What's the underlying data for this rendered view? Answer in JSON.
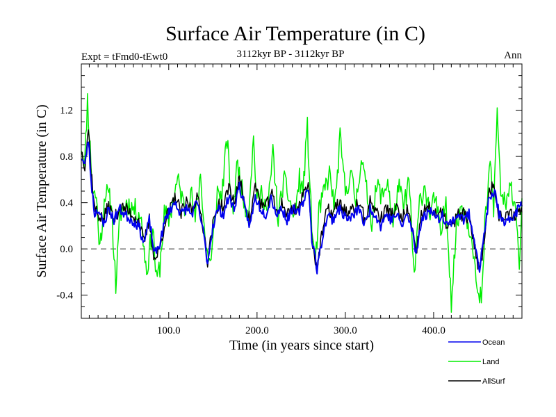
{
  "chart_data": {
    "type": "line",
    "title": "Surface Air Temperature (in C)",
    "subtitle_left": "Expt = tFmd0-tEwt0",
    "subtitle_center": "3112kyr BP - 3112kyr BP",
    "subtitle_right": "Ann",
    "xlabel": "Time (in years since start)",
    "ylabel": "Surface Air Temperature (in C)",
    "xlim": [
      1,
      500
    ],
    "ylim": [
      -0.6,
      1.6
    ],
    "xticks": [
      100,
      200,
      300,
      400
    ],
    "xtick_labels": [
      "100.0",
      "200.0",
      "300.0",
      "400.0"
    ],
    "yticks": [
      -0.4,
      0.0,
      0.4,
      0.8,
      1.2
    ],
    "ytick_labels": [
      "-0.4",
      "0.0",
      "0.4",
      "0.8",
      "1.2"
    ],
    "reference_line": 0.0,
    "series": [
      {
        "name": "Land",
        "color": "#00ee00",
        "anchors": [
          [
            1,
            0.9
          ],
          [
            5,
            0.75
          ],
          [
            8,
            1.3
          ],
          [
            10,
            1.0
          ],
          [
            14,
            0.5
          ],
          [
            18,
            0.45
          ],
          [
            22,
            0.0
          ],
          [
            28,
            0.5
          ],
          [
            35,
            0.4
          ],
          [
            40,
            -0.32
          ],
          [
            45,
            0.3
          ],
          [
            52,
            0.4
          ],
          [
            60,
            0.35
          ],
          [
            68,
            0.3
          ],
          [
            75,
            -0.2
          ],
          [
            82,
            0.2
          ],
          [
            86,
            -0.28
          ],
          [
            90,
            -0.15
          ],
          [
            95,
            0.3
          ],
          [
            100,
            0.25
          ],
          [
            106,
            0.45
          ],
          [
            110,
            0.6
          ],
          [
            118,
            0.35
          ],
          [
            125,
            0.5
          ],
          [
            130,
            0.25
          ],
          [
            136,
            0.65
          ],
          [
            142,
            0.0
          ],
          [
            148,
            -0.12
          ],
          [
            155,
            0.5
          ],
          [
            160,
            0.45
          ],
          [
            166,
            0.95
          ],
          [
            172,
            0.3
          ],
          [
            178,
            0.75
          ],
          [
            184,
            0.45
          ],
          [
            190,
            0.3
          ],
          [
            196,
            0.95
          ],
          [
            200,
            0.4
          ],
          [
            206,
            0.5
          ],
          [
            212,
            0.3
          ],
          [
            218,
            0.85
          ],
          [
            224,
            0.25
          ],
          [
            230,
            0.6
          ],
          [
            236,
            0.45
          ],
          [
            242,
            0.25
          ],
          [
            248,
            0.6
          ],
          [
            252,
            0.5
          ],
          [
            257,
            1.05
          ],
          [
            262,
            0.2
          ],
          [
            266,
            -0.12
          ],
          [
            270,
            0.3
          ],
          [
            276,
            0.5
          ],
          [
            282,
            0.65
          ],
          [
            288,
            0.35
          ],
          [
            294,
            0.95
          ],
          [
            300,
            0.5
          ],
          [
            306,
            0.65
          ],
          [
            312,
            0.4
          ],
          [
            318,
            0.8
          ],
          [
            324,
            0.5
          ],
          [
            330,
            0.25
          ],
          [
            336,
            0.55
          ],
          [
            342,
            0.45
          ],
          [
            348,
            0.6
          ],
          [
            354,
            0.2
          ],
          [
            360,
            0.55
          ],
          [
            366,
            0.35
          ],
          [
            372,
            0.6
          ],
          [
            378,
            -0.25
          ],
          [
            384,
            0.4
          ],
          [
            390,
            0.55
          ],
          [
            396,
            0.3
          ],
          [
            402,
            0.45
          ],
          [
            408,
            0.1
          ],
          [
            414,
            0.45
          ],
          [
            420,
            -0.45
          ],
          [
            426,
            0.2
          ],
          [
            432,
            0.4
          ],
          [
            438,
            0.25
          ],
          [
            444,
            0.1
          ],
          [
            450,
            -0.45
          ],
          [
            455,
            -0.4
          ],
          [
            458,
            0.2
          ],
          [
            464,
            0.75
          ],
          [
            468,
            0.35
          ],
          [
            472,
            1.2
          ],
          [
            476,
            0.5
          ],
          [
            482,
            0.35
          ],
          [
            488,
            0.55
          ],
          [
            494,
            0.3
          ],
          [
            497,
            -0.12
          ],
          [
            500,
            0.35
          ]
        ]
      },
      {
        "name": "Ocean",
        "color": "#0000ee",
        "anchors": [
          [
            1,
            0.8
          ],
          [
            5,
            0.72
          ],
          [
            9,
            0.95
          ],
          [
            12,
            0.6
          ],
          [
            16,
            0.3
          ],
          [
            20,
            0.35
          ],
          [
            26,
            0.2
          ],
          [
            32,
            0.35
          ],
          [
            38,
            0.25
          ],
          [
            44,
            0.35
          ],
          [
            50,
            0.3
          ],
          [
            58,
            0.25
          ],
          [
            66,
            0.2
          ],
          [
            72,
            0.05
          ],
          [
            78,
            0.25
          ],
          [
            84,
            -0.05
          ],
          [
            90,
            0.05
          ],
          [
            96,
            0.25
          ],
          [
            102,
            0.35
          ],
          [
            108,
            0.4
          ],
          [
            114,
            0.3
          ],
          [
            120,
            0.35
          ],
          [
            126,
            0.3
          ],
          [
            132,
            0.4
          ],
          [
            138,
            0.2
          ],
          [
            144,
            -0.12
          ],
          [
            150,
            0.2
          ],
          [
            156,
            0.35
          ],
          [
            162,
            0.3
          ],
          [
            168,
            0.45
          ],
          [
            174,
            0.35
          ],
          [
            180,
            0.55
          ],
          [
            186,
            0.35
          ],
          [
            192,
            0.2
          ],
          [
            198,
            0.45
          ],
          [
            204,
            0.35
          ],
          [
            210,
            0.3
          ],
          [
            216,
            0.45
          ],
          [
            222,
            0.3
          ],
          [
            228,
            0.35
          ],
          [
            234,
            0.25
          ],
          [
            240,
            0.35
          ],
          [
            246,
            0.3
          ],
          [
            252,
            0.4
          ],
          [
            258,
            0.55
          ],
          [
            262,
            0.1
          ],
          [
            268,
            -0.18
          ],
          [
            274,
            0.1
          ],
          [
            280,
            0.3
          ],
          [
            286,
            0.25
          ],
          [
            292,
            0.35
          ],
          [
            298,
            0.3
          ],
          [
            304,
            0.25
          ],
          [
            310,
            0.3
          ],
          [
            316,
            0.35
          ],
          [
            322,
            0.2
          ],
          [
            328,
            0.35
          ],
          [
            334,
            0.3
          ],
          [
            340,
            0.2
          ],
          [
            346,
            0.3
          ],
          [
            352,
            0.25
          ],
          [
            358,
            0.3
          ],
          [
            364,
            0.2
          ],
          [
            370,
            0.3
          ],
          [
            376,
            0.15
          ],
          [
            380,
            -0.05
          ],
          [
            386,
            0.25
          ],
          [
            392,
            0.3
          ],
          [
            398,
            0.35
          ],
          [
            404,
            0.25
          ],
          [
            410,
            0.3
          ],
          [
            416,
            0.2
          ],
          [
            422,
            0.25
          ],
          [
            428,
            0.3
          ],
          [
            434,
            0.25
          ],
          [
            440,
            0.3
          ],
          [
            446,
            0.1
          ],
          [
            452,
            -0.18
          ],
          [
            456,
            0.05
          ],
          [
            462,
            0.4
          ],
          [
            466,
            0.45
          ],
          [
            470,
            0.5
          ],
          [
            474,
            0.3
          ],
          [
            480,
            0.2
          ],
          [
            486,
            0.25
          ],
          [
            492,
            0.3
          ],
          [
            500,
            0.4
          ]
        ]
      },
      {
        "name": "AllSurf",
        "color": "#000000",
        "anchors": [
          [
            1,
            0.85
          ],
          [
            5,
            0.73
          ],
          [
            9,
            1.05
          ],
          [
            12,
            0.7
          ],
          [
            16,
            0.35
          ],
          [
            20,
            0.3
          ],
          [
            26,
            0.25
          ],
          [
            32,
            0.38
          ],
          [
            38,
            0.25
          ],
          [
            44,
            0.35
          ],
          [
            50,
            0.35
          ],
          [
            58,
            0.3
          ],
          [
            66,
            0.25
          ],
          [
            72,
            0.05
          ],
          [
            78,
            0.25
          ],
          [
            84,
            -0.1
          ],
          [
            90,
            0.0
          ],
          [
            96,
            0.25
          ],
          [
            102,
            0.35
          ],
          [
            108,
            0.45
          ],
          [
            114,
            0.3
          ],
          [
            120,
            0.4
          ],
          [
            126,
            0.35
          ],
          [
            132,
            0.45
          ],
          [
            138,
            0.25
          ],
          [
            144,
            -0.1
          ],
          [
            150,
            0.2
          ],
          [
            156,
            0.4
          ],
          [
            162,
            0.35
          ],
          [
            168,
            0.55
          ],
          [
            174,
            0.4
          ],
          [
            180,
            0.6
          ],
          [
            186,
            0.4
          ],
          [
            192,
            0.25
          ],
          [
            198,
            0.55
          ],
          [
            204,
            0.4
          ],
          [
            210,
            0.35
          ],
          [
            216,
            0.5
          ],
          [
            222,
            0.3
          ],
          [
            228,
            0.4
          ],
          [
            234,
            0.3
          ],
          [
            240,
            0.35
          ],
          [
            246,
            0.35
          ],
          [
            252,
            0.45
          ],
          [
            258,
            0.6
          ],
          [
            262,
            0.1
          ],
          [
            268,
            -0.17
          ],
          [
            274,
            0.15
          ],
          [
            280,
            0.35
          ],
          [
            286,
            0.3
          ],
          [
            292,
            0.4
          ],
          [
            298,
            0.35
          ],
          [
            304,
            0.3
          ],
          [
            310,
            0.35
          ],
          [
            316,
            0.4
          ],
          [
            322,
            0.25
          ],
          [
            328,
            0.4
          ],
          [
            334,
            0.35
          ],
          [
            340,
            0.25
          ],
          [
            346,
            0.35
          ],
          [
            352,
            0.3
          ],
          [
            358,
            0.35
          ],
          [
            364,
            0.25
          ],
          [
            370,
            0.35
          ],
          [
            376,
            0.15
          ],
          [
            380,
            -0.05
          ],
          [
            386,
            0.3
          ],
          [
            392,
            0.35
          ],
          [
            398,
            0.35
          ],
          [
            404,
            0.3
          ],
          [
            410,
            0.3
          ],
          [
            416,
            0.2
          ],
          [
            422,
            0.2
          ],
          [
            428,
            0.3
          ],
          [
            434,
            0.3
          ],
          [
            440,
            0.25
          ],
          [
            446,
            0.05
          ],
          [
            452,
            -0.2
          ],
          [
            456,
            0.0
          ],
          [
            462,
            0.45
          ],
          [
            466,
            0.55
          ],
          [
            470,
            0.5
          ],
          [
            474,
            0.3
          ],
          [
            480,
            0.25
          ],
          [
            486,
            0.3
          ],
          [
            492,
            0.3
          ],
          [
            500,
            0.35
          ]
        ]
      }
    ],
    "legend": [
      {
        "label": "Ocean",
        "color": "#0000ee"
      },
      {
        "label": "Land",
        "color": "#00ee00"
      },
      {
        "label": "AllSurf",
        "color": "#000000"
      }
    ],
    "legend_placement": "bottom-right, below plot"
  }
}
